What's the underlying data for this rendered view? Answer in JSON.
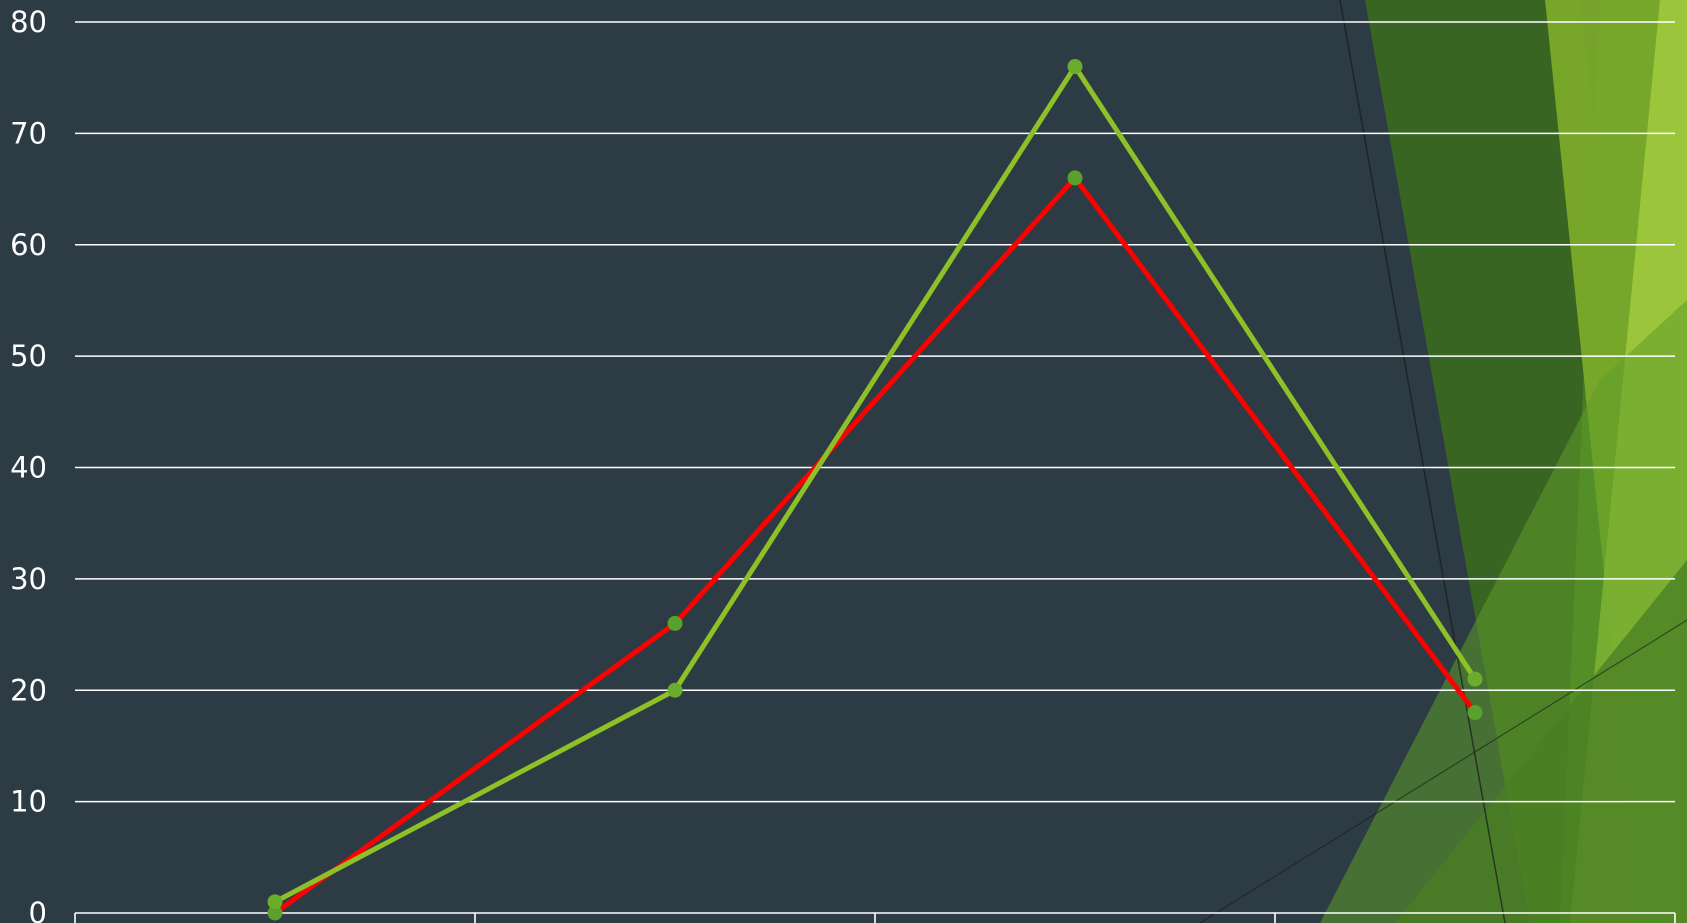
{
  "chart_data": {
    "type": "line",
    "categories": [
      "",
      "",
      "",
      ""
    ],
    "series": [
      {
        "color": "#ff0000",
        "marker_color": "#5aa02c",
        "values": [
          0,
          26,
          66,
          18
        ]
      },
      {
        "color": "#8ec127",
        "marker_color": "#6aad2c",
        "values": [
          1,
          20,
          76,
          21
        ]
      }
    ],
    "ylim": [
      0,
      80
    ],
    "yticks": [
      "0",
      "10",
      "20",
      "30",
      "40",
      "50",
      "60",
      "70",
      "80"
    ],
    "grid": true,
    "title": "",
    "xlabel": "",
    "ylabel": ""
  },
  "theme": {
    "background": "#2c3b44",
    "gridline_color": "#ffffff",
    "decor_colors": [
      "#3a6a1f",
      "#4a7f23",
      "#7aaa2a",
      "#9fca3d",
      "#5e9c2a"
    ]
  }
}
